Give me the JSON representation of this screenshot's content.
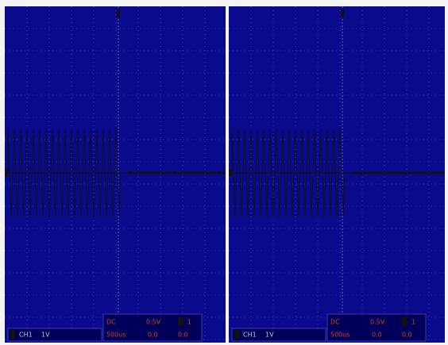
{
  "panels": [
    {
      "channel": "CH1",
      "scale": "1V",
      "coupling": "DC",
      "volts": "0.5V",
      "trigger": "1",
      "timebase": "500us",
      "offset": "0.0",
      "level": "0.0"
    },
    {
      "channel": "CH1",
      "scale": "1V",
      "coupling": "DC",
      "volts": "0.5V",
      "trigger": "1",
      "timebase": "500us",
      "offset": "0.0",
      "level": "0.0"
    }
  ]
}
